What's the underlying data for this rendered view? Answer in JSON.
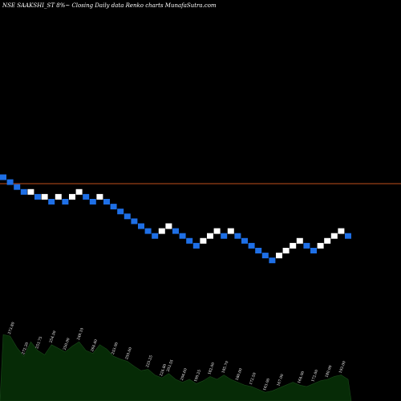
{
  "chart_data": {
    "type": "renko",
    "title": "NSE SAAKSHI_ST 8%~  Closing Daily data  Renko  charts MunafaSutra.com",
    "reference_line": {
      "color": "#c0501c"
    },
    "colors": {
      "up": "#ffffff",
      "down": "#1e6fe6",
      "volume_fill": "#062b06",
      "volume_line": "#1a4a1a"
    },
    "bricks": [
      {
        "n": 1,
        "dir": "down"
      },
      {
        "n": 2,
        "dir": "down"
      },
      {
        "n": 3,
        "dir": "down"
      },
      {
        "n": 4,
        "dir": "down"
      },
      {
        "n": 4,
        "dir": "up"
      },
      {
        "n": 5,
        "dir": "down"
      },
      {
        "n": 5,
        "dir": "up"
      },
      {
        "n": 6,
        "dir": "down"
      },
      {
        "n": 5,
        "dir": "up"
      },
      {
        "n": 6,
        "dir": "down"
      },
      {
        "n": 5,
        "dir": "up"
      },
      {
        "n": 4,
        "dir": "up"
      },
      {
        "n": 5,
        "dir": "down"
      },
      {
        "n": 6,
        "dir": "down"
      },
      {
        "n": 5,
        "dir": "up"
      },
      {
        "n": 6,
        "dir": "down"
      },
      {
        "n": 7,
        "dir": "down"
      },
      {
        "n": 8,
        "dir": "down"
      },
      {
        "n": 9,
        "dir": "down"
      },
      {
        "n": 10,
        "dir": "down"
      },
      {
        "n": 11,
        "dir": "down"
      },
      {
        "n": 12,
        "dir": "down"
      },
      {
        "n": 13,
        "dir": "down"
      },
      {
        "n": 12,
        "dir": "up"
      },
      {
        "n": 11,
        "dir": "up"
      },
      {
        "n": 12,
        "dir": "down"
      },
      {
        "n": 13,
        "dir": "down"
      },
      {
        "n": 14,
        "dir": "down"
      },
      {
        "n": 15,
        "dir": "down"
      },
      {
        "n": 14,
        "dir": "up"
      },
      {
        "n": 13,
        "dir": "up"
      },
      {
        "n": 12,
        "dir": "up"
      },
      {
        "n": 13,
        "dir": "down"
      },
      {
        "n": 12,
        "dir": "up"
      },
      {
        "n": 13,
        "dir": "down"
      },
      {
        "n": 14,
        "dir": "down"
      },
      {
        "n": 15,
        "dir": "down"
      },
      {
        "n": 16,
        "dir": "down"
      },
      {
        "n": 17,
        "dir": "down"
      },
      {
        "n": 18,
        "dir": "down"
      },
      {
        "n": 17,
        "dir": "up"
      },
      {
        "n": 16,
        "dir": "up"
      },
      {
        "n": 15,
        "dir": "up"
      },
      {
        "n": 14,
        "dir": "up"
      },
      {
        "n": 15,
        "dir": "down"
      },
      {
        "n": 16,
        "dir": "down"
      },
      {
        "n": 15,
        "dir": "up"
      },
      {
        "n": 14,
        "dir": "up"
      },
      {
        "n": 13,
        "dir": "up"
      },
      {
        "n": 12,
        "dir": "up"
      },
      {
        "n": 13,
        "dir": "down"
      }
    ],
    "volume_labels": [
      {
        "n": 2,
        "text": "273.80"
      },
      {
        "n": 4,
        "text": "272.20"
      },
      {
        "n": 6,
        "text": "253.75"
      },
      {
        "n": 8,
        "text": "254.50"
      },
      {
        "n": 10,
        "text": "250.00"
      },
      {
        "n": 12,
        "text": "249.10"
      },
      {
        "n": 14,
        "text": "264.40"
      },
      {
        "n": 17,
        "text": "253.00"
      },
      {
        "n": 19,
        "text": "250.00"
      },
      {
        "n": 22,
        "text": "225.25"
      },
      {
        "n": 24,
        "text": "224.80"
      },
      {
        "n": 25,
        "text": "203.55"
      },
      {
        "n": 27,
        "text": "204.60"
      },
      {
        "n": 29,
        "text": "190.25"
      },
      {
        "n": 31,
        "text": "182.00"
      },
      {
        "n": 33,
        "text": "185.70"
      },
      {
        "n": 35,
        "text": "180.00"
      },
      {
        "n": 37,
        "text": "172.50"
      },
      {
        "n": 39,
        "text": "163.00"
      },
      {
        "n": 41,
        "text": "167.00"
      },
      {
        "n": 44,
        "text": "164.00"
      },
      {
        "n": 46,
        "text": "172.00"
      },
      {
        "n": 48,
        "text": "180.00"
      },
      {
        "n": 50,
        "text": "193.00"
      }
    ],
    "volume_profile": [
      {
        "n": 1,
        "v": 0.92
      },
      {
        "n": 2,
        "v": 0.9
      },
      {
        "n": 3,
        "v": 0.74
      },
      {
        "n": 4,
        "v": 0.62
      },
      {
        "n": 5,
        "v": 0.82
      },
      {
        "n": 6,
        "v": 0.7
      },
      {
        "n": 7,
        "v": 0.64
      },
      {
        "n": 8,
        "v": 0.78
      },
      {
        "n": 9,
        "v": 0.73
      },
      {
        "n": 10,
        "v": 0.68
      },
      {
        "n": 11,
        "v": 0.76
      },
      {
        "n": 12,
        "v": 0.82
      },
      {
        "n": 13,
        "v": 0.7
      },
      {
        "n": 14,
        "v": 0.66
      },
      {
        "n": 15,
        "v": 0.78
      },
      {
        "n": 16,
        "v": 0.72
      },
      {
        "n": 17,
        "v": 0.62
      },
      {
        "n": 18,
        "v": 0.58
      },
      {
        "n": 19,
        "v": 0.55
      },
      {
        "n": 20,
        "v": 0.48
      },
      {
        "n": 21,
        "v": 0.42
      },
      {
        "n": 22,
        "v": 0.44
      },
      {
        "n": 23,
        "v": 0.36
      },
      {
        "n": 24,
        "v": 0.32
      },
      {
        "n": 25,
        "v": 0.38
      },
      {
        "n": 26,
        "v": 0.3
      },
      {
        "n": 27,
        "v": 0.26
      },
      {
        "n": 28,
        "v": 0.3
      },
      {
        "n": 29,
        "v": 0.24
      },
      {
        "n": 30,
        "v": 0.28
      },
      {
        "n": 31,
        "v": 0.34
      },
      {
        "n": 32,
        "v": 0.3
      },
      {
        "n": 33,
        "v": 0.36
      },
      {
        "n": 34,
        "v": 0.3
      },
      {
        "n": 35,
        "v": 0.26
      },
      {
        "n": 36,
        "v": 0.22
      },
      {
        "n": 37,
        "v": 0.2
      },
      {
        "n": 38,
        "v": 0.16
      },
      {
        "n": 39,
        "v": 0.12
      },
      {
        "n": 40,
        "v": 0.14
      },
      {
        "n": 41,
        "v": 0.18
      },
      {
        "n": 42,
        "v": 0.22
      },
      {
        "n": 43,
        "v": 0.26
      },
      {
        "n": 44,
        "v": 0.22
      },
      {
        "n": 45,
        "v": 0.2
      },
      {
        "n": 46,
        "v": 0.24
      },
      {
        "n": 47,
        "v": 0.28
      },
      {
        "n": 48,
        "v": 0.3
      },
      {
        "n": 49,
        "v": 0.34
      },
      {
        "n": 50,
        "v": 0.36
      },
      {
        "n": 51,
        "v": 0.3
      }
    ]
  }
}
